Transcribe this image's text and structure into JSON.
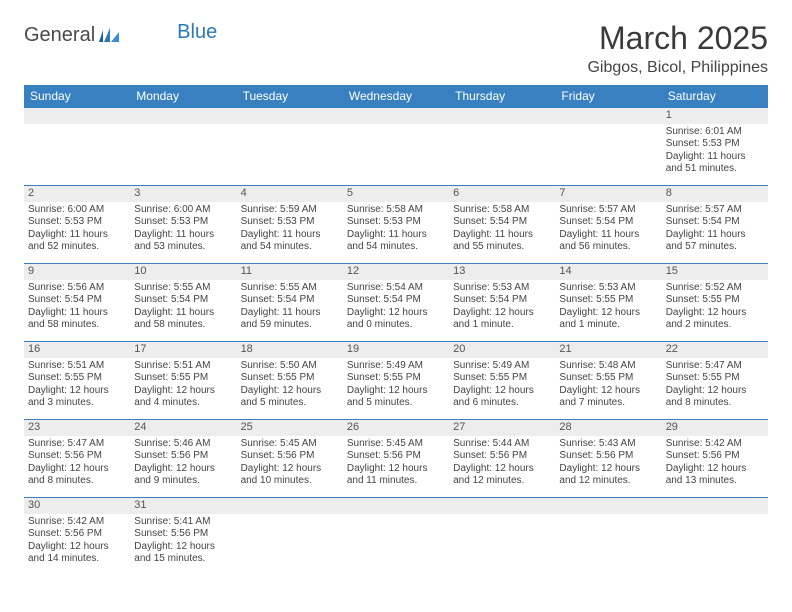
{
  "logo": {
    "text1": "General",
    "text2": "Blue"
  },
  "title": "March 2025",
  "location": "Gibgos, Bicol, Philippines",
  "colors": {
    "header_bg": "#3880c0",
    "header_text": "#ffffff",
    "border": "#3880c0",
    "daynum_bg": "#ededed"
  },
  "days": [
    "Sunday",
    "Monday",
    "Tuesday",
    "Wednesday",
    "Thursday",
    "Friday",
    "Saturday"
  ],
  "weeks": [
    [
      null,
      null,
      null,
      null,
      null,
      null,
      {
        "n": "1",
        "sr": "Sunrise: 6:01 AM",
        "ss": "Sunset: 5:53 PM",
        "dl": "Daylight: 11 hours and 51 minutes."
      }
    ],
    [
      {
        "n": "2",
        "sr": "Sunrise: 6:00 AM",
        "ss": "Sunset: 5:53 PM",
        "dl": "Daylight: 11 hours and 52 minutes."
      },
      {
        "n": "3",
        "sr": "Sunrise: 6:00 AM",
        "ss": "Sunset: 5:53 PM",
        "dl": "Daylight: 11 hours and 53 minutes."
      },
      {
        "n": "4",
        "sr": "Sunrise: 5:59 AM",
        "ss": "Sunset: 5:53 PM",
        "dl": "Daylight: 11 hours and 54 minutes."
      },
      {
        "n": "5",
        "sr": "Sunrise: 5:58 AM",
        "ss": "Sunset: 5:53 PM",
        "dl": "Daylight: 11 hours and 54 minutes."
      },
      {
        "n": "6",
        "sr": "Sunrise: 5:58 AM",
        "ss": "Sunset: 5:54 PM",
        "dl": "Daylight: 11 hours and 55 minutes."
      },
      {
        "n": "7",
        "sr": "Sunrise: 5:57 AM",
        "ss": "Sunset: 5:54 PM",
        "dl": "Daylight: 11 hours and 56 minutes."
      },
      {
        "n": "8",
        "sr": "Sunrise: 5:57 AM",
        "ss": "Sunset: 5:54 PM",
        "dl": "Daylight: 11 hours and 57 minutes."
      }
    ],
    [
      {
        "n": "9",
        "sr": "Sunrise: 5:56 AM",
        "ss": "Sunset: 5:54 PM",
        "dl": "Daylight: 11 hours and 58 minutes."
      },
      {
        "n": "10",
        "sr": "Sunrise: 5:55 AM",
        "ss": "Sunset: 5:54 PM",
        "dl": "Daylight: 11 hours and 58 minutes."
      },
      {
        "n": "11",
        "sr": "Sunrise: 5:55 AM",
        "ss": "Sunset: 5:54 PM",
        "dl": "Daylight: 11 hours and 59 minutes."
      },
      {
        "n": "12",
        "sr": "Sunrise: 5:54 AM",
        "ss": "Sunset: 5:54 PM",
        "dl": "Daylight: 12 hours and 0 minutes."
      },
      {
        "n": "13",
        "sr": "Sunrise: 5:53 AM",
        "ss": "Sunset: 5:54 PM",
        "dl": "Daylight: 12 hours and 1 minute."
      },
      {
        "n": "14",
        "sr": "Sunrise: 5:53 AM",
        "ss": "Sunset: 5:55 PM",
        "dl": "Daylight: 12 hours and 1 minute."
      },
      {
        "n": "15",
        "sr": "Sunrise: 5:52 AM",
        "ss": "Sunset: 5:55 PM",
        "dl": "Daylight: 12 hours and 2 minutes."
      }
    ],
    [
      {
        "n": "16",
        "sr": "Sunrise: 5:51 AM",
        "ss": "Sunset: 5:55 PM",
        "dl": "Daylight: 12 hours and 3 minutes."
      },
      {
        "n": "17",
        "sr": "Sunrise: 5:51 AM",
        "ss": "Sunset: 5:55 PM",
        "dl": "Daylight: 12 hours and 4 minutes."
      },
      {
        "n": "18",
        "sr": "Sunrise: 5:50 AM",
        "ss": "Sunset: 5:55 PM",
        "dl": "Daylight: 12 hours and 5 minutes."
      },
      {
        "n": "19",
        "sr": "Sunrise: 5:49 AM",
        "ss": "Sunset: 5:55 PM",
        "dl": "Daylight: 12 hours and 5 minutes."
      },
      {
        "n": "20",
        "sr": "Sunrise: 5:49 AM",
        "ss": "Sunset: 5:55 PM",
        "dl": "Daylight: 12 hours and 6 minutes."
      },
      {
        "n": "21",
        "sr": "Sunrise: 5:48 AM",
        "ss": "Sunset: 5:55 PM",
        "dl": "Daylight: 12 hours and 7 minutes."
      },
      {
        "n": "22",
        "sr": "Sunrise: 5:47 AM",
        "ss": "Sunset: 5:55 PM",
        "dl": "Daylight: 12 hours and 8 minutes."
      }
    ],
    [
      {
        "n": "23",
        "sr": "Sunrise: 5:47 AM",
        "ss": "Sunset: 5:56 PM",
        "dl": "Daylight: 12 hours and 8 minutes."
      },
      {
        "n": "24",
        "sr": "Sunrise: 5:46 AM",
        "ss": "Sunset: 5:56 PM",
        "dl": "Daylight: 12 hours and 9 minutes."
      },
      {
        "n": "25",
        "sr": "Sunrise: 5:45 AM",
        "ss": "Sunset: 5:56 PM",
        "dl": "Daylight: 12 hours and 10 minutes."
      },
      {
        "n": "26",
        "sr": "Sunrise: 5:45 AM",
        "ss": "Sunset: 5:56 PM",
        "dl": "Daylight: 12 hours and 11 minutes."
      },
      {
        "n": "27",
        "sr": "Sunrise: 5:44 AM",
        "ss": "Sunset: 5:56 PM",
        "dl": "Daylight: 12 hours and 12 minutes."
      },
      {
        "n": "28",
        "sr": "Sunrise: 5:43 AM",
        "ss": "Sunset: 5:56 PM",
        "dl": "Daylight: 12 hours and 12 minutes."
      },
      {
        "n": "29",
        "sr": "Sunrise: 5:42 AM",
        "ss": "Sunset: 5:56 PM",
        "dl": "Daylight: 12 hours and 13 minutes."
      }
    ],
    [
      {
        "n": "30",
        "sr": "Sunrise: 5:42 AM",
        "ss": "Sunset: 5:56 PM",
        "dl": "Daylight: 12 hours and 14 minutes."
      },
      {
        "n": "31",
        "sr": "Sunrise: 5:41 AM",
        "ss": "Sunset: 5:56 PM",
        "dl": "Daylight: 12 hours and 15 minutes."
      },
      null,
      null,
      null,
      null,
      null
    ]
  ]
}
